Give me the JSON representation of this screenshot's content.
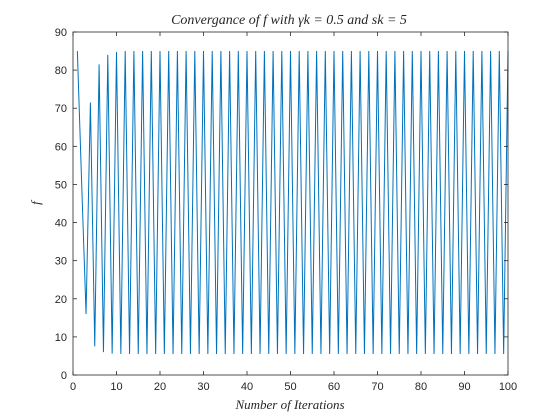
{
  "chart_data": {
    "type": "line",
    "title": "Convergance of f with γk = 0.5 and sk = 5",
    "xlabel": "Number of Iterations",
    "ylabel": "f",
    "xlim": [
      0,
      100
    ],
    "ylim": [
      0,
      90
    ],
    "x_ticks": [
      "0",
      "10",
      "20",
      "30",
      "40",
      "50",
      "60",
      "70",
      "80",
      "90",
      "100"
    ],
    "y_ticks": [
      "0",
      "10",
      "20",
      "30",
      "40",
      "50",
      "60",
      "70",
      "80",
      "90"
    ],
    "grid": false,
    "series": [
      {
        "color": "#0072bd",
        "x": [
          1,
          2,
          3,
          4,
          5,
          6,
          7,
          8,
          9,
          10,
          11,
          12,
          13,
          14,
          15,
          16,
          17,
          18,
          19,
          20,
          21,
          22,
          23,
          24,
          25,
          26,
          27,
          28,
          29,
          30,
          31,
          32,
          33,
          34,
          35,
          36,
          37,
          38,
          39,
          40,
          41,
          42,
          43,
          44,
          45,
          46,
          47,
          48,
          49,
          50,
          51,
          52,
          53,
          54,
          55,
          56,
          57,
          58,
          59,
          60,
          61,
          62,
          63,
          64,
          65,
          66,
          67,
          68,
          69,
          70,
          71,
          72,
          73,
          74,
          75,
          76,
          77,
          78,
          79,
          80,
          81,
          82,
          83,
          84,
          85,
          86,
          87,
          88,
          89,
          90,
          91,
          92,
          93,
          94,
          95,
          96,
          97,
          98,
          99,
          100
        ],
        "values": [
          85,
          50,
          16,
          71.5,
          7.5,
          81.5,
          6,
          84,
          5.6,
          84.8,
          5.5,
          85,
          5.5,
          85,
          5.5,
          85,
          5.5,
          85,
          5.5,
          85,
          5.5,
          85,
          5.5,
          85,
          5.5,
          85,
          5.5,
          85,
          5.5,
          85,
          5.5,
          85,
          5.5,
          85,
          5.5,
          85,
          5.5,
          85,
          5.5,
          85,
          5.5,
          85,
          5.5,
          85,
          5.5,
          85,
          5.5,
          85,
          5.5,
          85,
          5.5,
          85,
          5.5,
          85,
          5.5,
          85,
          5.5,
          85,
          5.5,
          85,
          5.5,
          85,
          5.5,
          85,
          5.5,
          85,
          5.5,
          85,
          5.5,
          85,
          5.5,
          85,
          5.5,
          85,
          5.5,
          85,
          5.5,
          85,
          5.5,
          85,
          5.5,
          85,
          5.5,
          85,
          5.5,
          85,
          5.5,
          85,
          5.5,
          85,
          5.5,
          85,
          5.5,
          85,
          5.5,
          85,
          5.5,
          85,
          5.5,
          85
        ]
      }
    ]
  }
}
